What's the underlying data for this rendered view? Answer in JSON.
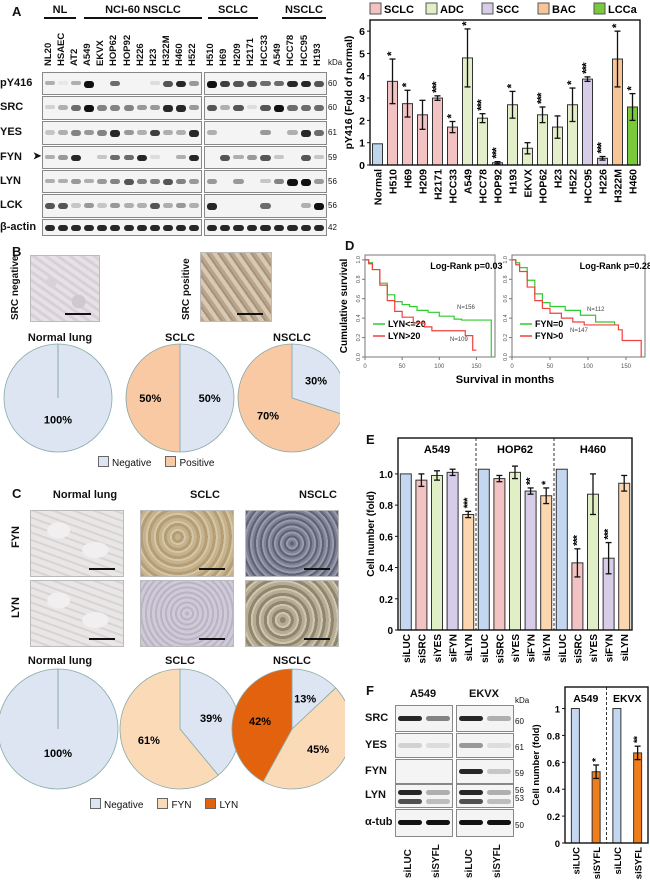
{
  "panel_labels": [
    "A",
    "B",
    "C",
    "D",
    "E",
    "F"
  ],
  "panel_a": {
    "groups": [
      "NL",
      "NCI-60 NSCLC",
      "SCLC",
      "NSCLC"
    ],
    "lanes_left": [
      "NL20",
      "HSAEC",
      "AT2",
      "A549",
      "EKVX",
      "HOP62",
      "HOP92",
      "H226",
      "H23",
      "H322M",
      "H460",
      "H522"
    ],
    "lanes_right": [
      "H510",
      "H69",
      "H209",
      "H2171",
      "HCC33",
      "A549",
      "HCC78",
      "HCC95",
      "H193"
    ],
    "rows": [
      "pY416",
      "SRC",
      "YES",
      "FYN",
      "LYN",
      "LCK",
      "β-actin"
    ],
    "kda_unit": "kDa",
    "kda": [
      "60",
      "60",
      "61",
      "59",
      "56",
      "56",
      "42"
    ],
    "arrow_icon": "arrow-right-icon"
  },
  "panel_b": {
    "ihc_labels": [
      "SRC negative",
      "SRC positive"
    ],
    "legend": [
      "Negative",
      "Positive"
    ]
  },
  "panel_c": {
    "column_titles": [
      "Normal lung",
      "SCLC",
      "NSCLC"
    ],
    "row_labels": [
      "FYN",
      "LYN"
    ],
    "legend": [
      "Negative",
      "FYN",
      "LYN"
    ]
  },
  "panel_d": {
    "ylabel": "Cumulative survival",
    "xlabel": "Survival in months"
  },
  "panel_f": {
    "columns": [
      "A549",
      "EKVX"
    ],
    "rows": [
      "SRC",
      "YES",
      "FYN",
      "LYN",
      "α-tub"
    ],
    "kda_unit": "kDa",
    "kda": [
      "60",
      "61",
      "59",
      "56",
      "53",
      "50"
    ],
    "lanes": [
      "siLUC",
      "siSYFL"
    ]
  },
  "colors": {
    "negative": "#dce5f1",
    "positive": "#f8c9a2",
    "fyn": "#fbdab8",
    "lyn": "#e3620e",
    "km_green": "#2ecc2e",
    "km_red": "#f04040"
  },
  "chart_data": [
    {
      "type": "bar",
      "title": "",
      "ylabel": "pY416 (Fold of normal)",
      "ylim": [
        0,
        6.5
      ],
      "yticks": [
        "0",
        "1",
        "2",
        "3",
        "4",
        "5",
        "6"
      ],
      "legend": [
        "SCLC",
        "ADC",
        "SCC",
        "BAC",
        "LCCa"
      ],
      "legend_placement": "top",
      "colors": {
        "Normal": "#bdd5ef",
        "SCLC": "#f3c3c3",
        "ADC": "#e3efca",
        "SCC": "#d8cde8",
        "BAC": "#f8c596",
        "LCCa": "#79c93a"
      },
      "panels": [
        {
          "categories": [
            "Normal",
            "H510",
            "H69",
            "H209",
            "H2171",
            "HCC33",
            "A549",
            "HCC78",
            "HOP92",
            "H193",
            "EKVX",
            "HOP62",
            "H23",
            "H522",
            "HCC95",
            "H226",
            "H322M",
            "H460"
          ],
          "groups": [
            "Normal",
            "SCLC",
            "SCLC",
            "SCLC",
            "SCLC",
            "SCLC",
            "ADC",
            "ADC",
            "ADC",
            "ADC",
            "ADC",
            "ADC",
            "ADC",
            "ADC",
            "SCC",
            "SCC",
            "BAC",
            "LCCa"
          ],
          "values": [
            0.95,
            3.75,
            2.75,
            2.25,
            3.0,
            1.7,
            4.8,
            2.1,
            0.1,
            2.7,
            0.75,
            2.25,
            1.7,
            2.7,
            3.85,
            0.3,
            4.75,
            2.6
          ],
          "errors": [
            0,
            1.0,
            0.6,
            0.65,
            0.1,
            0.25,
            1.3,
            0.2,
            0.05,
            0.6,
            0.25,
            0.35,
            0.5,
            0.75,
            0.1,
            0.08,
            1.25,
            0.6
          ],
          "significance": [
            "",
            "*",
            "*",
            "",
            "***",
            "*",
            "*",
            "***",
            "***",
            "*",
            "",
            "***",
            "",
            "*",
            "***",
            "***",
            "*",
            "*"
          ]
        }
      ]
    },
    {
      "type": "pie",
      "title": "Normal lung",
      "categories": [
        "Negative",
        "Positive"
      ],
      "values": [
        100,
        0
      ],
      "labels": [
        "100%",
        ""
      ]
    },
    {
      "type": "pie",
      "title": "SCLC",
      "categories": [
        "Negative",
        "Positive"
      ],
      "values": [
        50,
        50
      ],
      "labels": [
        "50%",
        "50%"
      ]
    },
    {
      "type": "pie",
      "title": "NSCLC",
      "categories": [
        "Negative",
        "Positive"
      ],
      "values": [
        30,
        70
      ],
      "labels": [
        "30%",
        "70%"
      ]
    },
    {
      "type": "pie",
      "title": "Normal lung",
      "categories": [
        "Negative",
        "FYN",
        "LYN"
      ],
      "values": [
        100,
        0,
        0
      ],
      "labels": [
        "100%",
        "",
        ""
      ]
    },
    {
      "type": "pie",
      "title": "SCLC",
      "categories": [
        "Negative",
        "FYN",
        "LYN"
      ],
      "values": [
        39,
        61,
        0
      ],
      "labels": [
        "39%",
        "61%",
        ""
      ]
    },
    {
      "type": "pie",
      "title": "NSCLC",
      "categories": [
        "Negative",
        "FYN",
        "LYN"
      ],
      "values": [
        13,
        45,
        42
      ],
      "labels": [
        "13%",
        "45%",
        "42%"
      ]
    },
    {
      "type": "line",
      "annotation": "Log-Rank p=0.03",
      "xlim": [
        0,
        175
      ],
      "ylim": [
        0,
        1.05
      ],
      "xticks": [
        "0",
        "50",
        "100",
        "150"
      ],
      "yticks": [
        "0.0",
        "0.2",
        "0.4",
        "0.6",
        "0.8",
        "1.0"
      ],
      "series": [
        {
          "name": "LYN<=20",
          "n_label": "N=156",
          "color": "#2ecc2e",
          "points": [
            [
              0,
              1
            ],
            [
              5,
              0.97
            ],
            [
              10,
              0.9
            ],
            [
              20,
              0.76
            ],
            [
              30,
              0.64
            ],
            [
              40,
              0.57
            ],
            [
              50,
              0.54
            ],
            [
              60,
              0.52
            ],
            [
              70,
              0.48
            ],
            [
              85,
              0.46
            ],
            [
              100,
              0.42
            ],
            [
              120,
              0.39
            ],
            [
              130,
              0.38
            ],
            [
              170,
              0.38
            ],
            [
              170,
              0
            ]
          ]
        },
        {
          "name": "LYN>20",
          "n_label": "N=109",
          "color": "#f04040",
          "points": [
            [
              0,
              1
            ],
            [
              5,
              0.96
            ],
            [
              10,
              0.9
            ],
            [
              20,
              0.74
            ],
            [
              30,
              0.58
            ],
            [
              40,
              0.47
            ],
            [
              50,
              0.41
            ],
            [
              65,
              0.35
            ],
            [
              80,
              0.31
            ],
            [
              90,
              0.27
            ],
            [
              130,
              0.27
            ],
            [
              135,
              0.22
            ],
            [
              142,
              0.22
            ],
            [
              145,
              0.07
            ],
            [
              150,
              0.07
            ]
          ]
        }
      ]
    },
    {
      "type": "line",
      "annotation": "Log-Rank p=0.28",
      "xlim": [
        0,
        175
      ],
      "ylim": [
        0,
        1.05
      ],
      "xticks": [
        "0",
        "50",
        "100",
        "150"
      ],
      "yticks": [
        "0.0",
        "0.2",
        "0.4",
        "0.6",
        "0.8",
        "1.0"
      ],
      "series": [
        {
          "name": "FYN=0",
          "n_label": "N=112",
          "color": "#2ecc2e",
          "points": [
            [
              0,
              1
            ],
            [
              5,
              0.97
            ],
            [
              10,
              0.92
            ],
            [
              20,
              0.79
            ],
            [
              30,
              0.65
            ],
            [
              40,
              0.56
            ],
            [
              50,
              0.52
            ],
            [
              70,
              0.48
            ],
            [
              90,
              0.43
            ],
            [
              110,
              0.36
            ],
            [
              135,
              0.33
            ]
          ]
        },
        {
          "name": "FYN>0",
          "n_label": "N=147",
          "color": "#f04040",
          "points": [
            [
              0,
              1
            ],
            [
              5,
              0.95
            ],
            [
              10,
              0.88
            ],
            [
              20,
              0.72
            ],
            [
              30,
              0.58
            ],
            [
              40,
              0.5
            ],
            [
              50,
              0.45
            ],
            [
              65,
              0.4
            ],
            [
              80,
              0.36
            ],
            [
              95,
              0.33
            ],
            [
              135,
              0.33
            ],
            [
              140,
              0.28
            ],
            [
              145,
              0.17
            ],
            [
              165,
              0.17
            ],
            [
              170,
              0
            ]
          ]
        }
      ]
    },
    {
      "type": "bar",
      "ylabel": "Cell number (fold)",
      "ylim": [
        0,
        1.23
      ],
      "yticks": [
        "0",
        "0.2",
        "0.4",
        "0.6",
        "0.8",
        "1.0"
      ],
      "colors": {
        "siLUC": "#c3d8f0",
        "siSRC": "#f3c3c3",
        "siYES": "#e0efc6",
        "siFYN": "#d8cde8",
        "siLYN": "#fbd6ae"
      },
      "panels": [
        {
          "name": "A549",
          "categories": [
            "siLUC",
            "siSRC",
            "siYES",
            "siFYN",
            "siLYN"
          ],
          "values": [
            1.0,
            0.96,
            0.99,
            1.01,
            0.74
          ],
          "errors": [
            0,
            0.04,
            0.03,
            0.02,
            0.02
          ],
          "significance": [
            "",
            "",
            "",
            "",
            "***"
          ]
        },
        {
          "name": "HOP62",
          "categories": [
            "siLUC",
            "siSRC",
            "siYES",
            "siFYN",
            "siLYN"
          ],
          "values": [
            1.03,
            0.97,
            1.01,
            0.89,
            0.86
          ],
          "errors": [
            0,
            0.02,
            0.04,
            0.02,
            0.05
          ],
          "significance": [
            "",
            "",
            "",
            "**",
            "*"
          ]
        },
        {
          "name": "H460",
          "categories": [
            "siLUC",
            "siSRC",
            "siYES",
            "siFYN",
            "siLYN"
          ],
          "values": [
            1.03,
            0.43,
            0.87,
            0.46,
            0.94
          ],
          "errors": [
            0,
            0.09,
            0.13,
            0.1,
            0.05
          ],
          "significance": [
            "",
            "***",
            "",
            "***",
            ""
          ]
        }
      ]
    },
    {
      "type": "bar",
      "ylabel": "Cell number (fold)",
      "ylim": [
        0,
        1.16
      ],
      "yticks": [
        "0",
        "0.2",
        "0.4",
        "0.6",
        "0.8",
        "1"
      ],
      "colors": {
        "siLUC": "#c3d8f0",
        "siSYFL": "#ef7d1a"
      },
      "panels": [
        {
          "name": "A549",
          "categories": [
            "siLUC",
            "siSYFL"
          ],
          "values": [
            1.0,
            0.53
          ],
          "errors": [
            0,
            0.05
          ],
          "significance": [
            "",
            "*"
          ]
        },
        {
          "name": "EKVX",
          "categories": [
            "siLUC",
            "siSYFL"
          ],
          "values": [
            1.0,
            0.67
          ],
          "errors": [
            0,
            0.05
          ],
          "significance": [
            "",
            "**"
          ]
        }
      ]
    }
  ]
}
